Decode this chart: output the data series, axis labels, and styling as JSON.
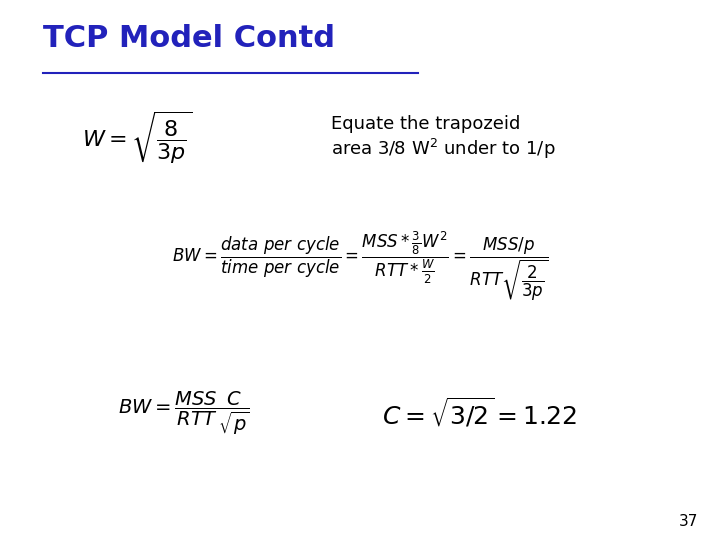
{
  "title": "TCP Model Contd",
  "title_color": "#2222BB",
  "title_fontsize": 22,
  "bg_color": "#ffffff",
  "slide_number": "37",
  "fontsize_eq1": 14,
  "fontsize_note": 13,
  "fontsize_eq2": 12,
  "fontsize_eq3": 13,
  "fontsize_eq4": 18,
  "fontsize_slide_num": 11,
  "note_line1": "Equate the trapozeid",
  "note_line2": "area 3/8 W$^{2}$ under to 1/p"
}
